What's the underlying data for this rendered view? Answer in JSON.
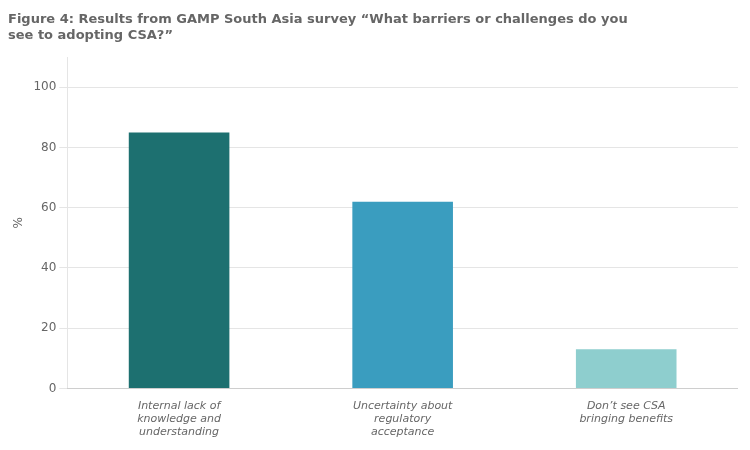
{
  "chart_data": {
    "type": "bar",
    "title": "Figure 4: Results from GAMP South Asia survey “What barriers or challenges do you\nsee to adopting CSA?”",
    "categories": [
      "Internal lack of\nknowledge and\nunderstanding",
      "Uncertainty about\nregulatory\nacceptance",
      "Don’t see CSA\nbringing benefits"
    ],
    "values": [
      85,
      62,
      13
    ],
    "colors": [
      "#1d7070",
      "#3a9dbf",
      "#8ecece"
    ],
    "ylabel": "%",
    "ylim": [
      0,
      110
    ],
    "yticks": [
      0,
      20,
      40,
      60,
      80,
      100
    ],
    "grid": true
  }
}
